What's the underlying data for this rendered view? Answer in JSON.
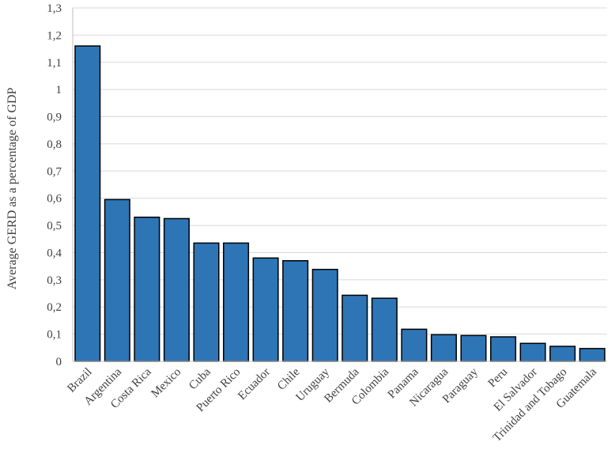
{
  "chart_data": {
    "type": "bar",
    "title": "",
    "xlabel": "",
    "ylabel": "Average GERD as a percentage of GDP",
    "ylim": [
      0,
      1.3
    ],
    "ytick_labels": [
      "0",
      "0,1",
      "0,2",
      "0,3",
      "0,4",
      "0,5",
      "0,6",
      "0,7",
      "0,8",
      "0,9",
      "1",
      "1,1",
      "1,2",
      "1,3"
    ],
    "categories": [
      "Brazil",
      "Argentina",
      "Costa Rica",
      "Mexico",
      "Cuba",
      "Puerto Rico",
      "Ecuador",
      "Chile",
      "Uruguay",
      "Bermuda",
      "Colombia",
      "Panama",
      "Nicaragua",
      "Paraguay",
      "Peru",
      "El Salvador",
      "Trinidad and Tobago",
      "Guatemala"
    ],
    "values": [
      1.16,
      0.595,
      0.53,
      0.525,
      0.435,
      0.435,
      0.38,
      0.37,
      0.338,
      0.243,
      0.232,
      0.118,
      0.098,
      0.095,
      0.09,
      0.066,
      0.055,
      0.047
    ],
    "grid": true,
    "legend": "none",
    "bar_color": "#2e75b6"
  }
}
